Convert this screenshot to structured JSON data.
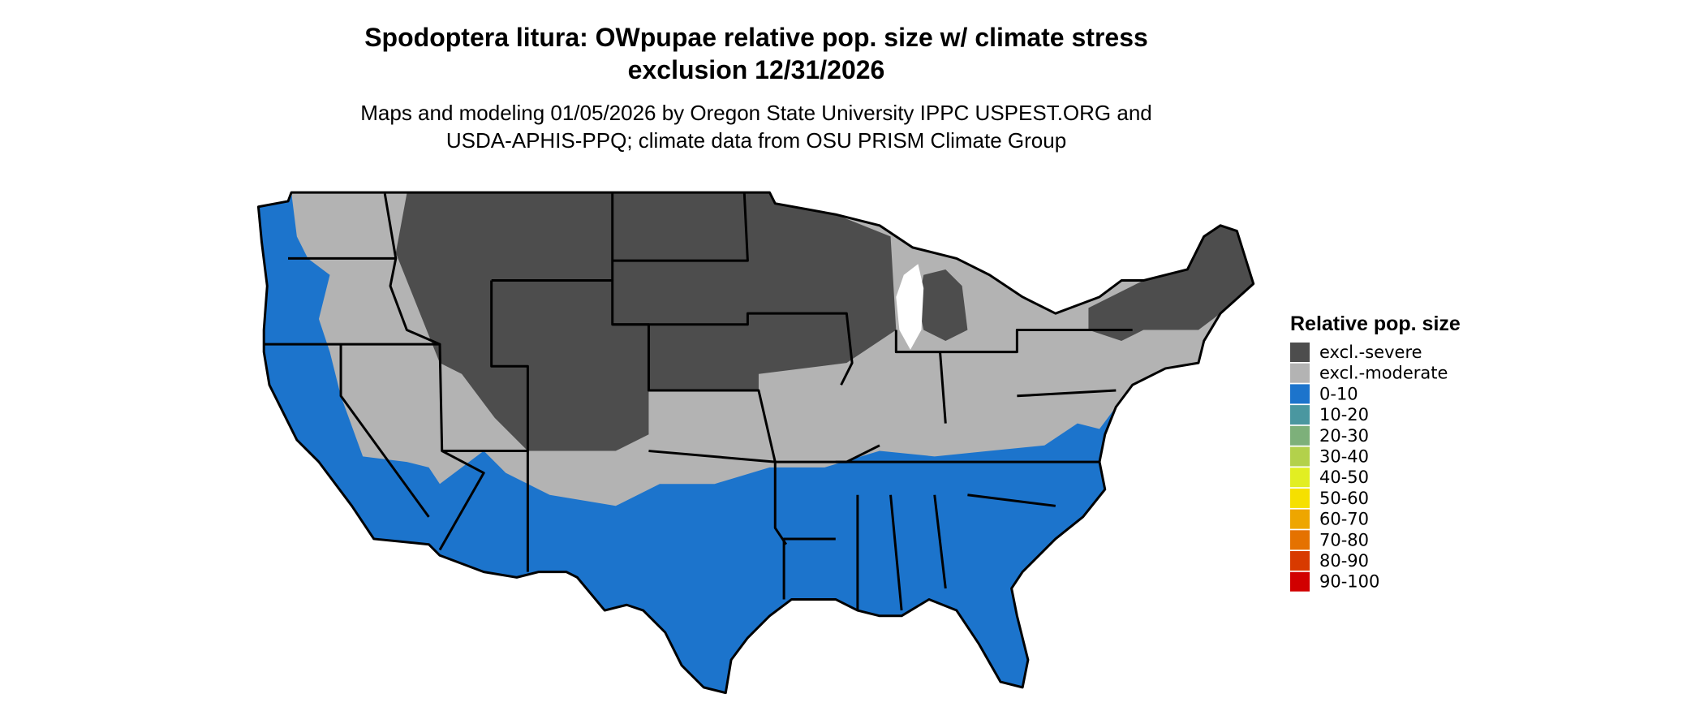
{
  "title": [
    "Spodoptera litura: OWpupae relative pop. size w/ climate stress",
    "exclusion 12/31/2026"
  ],
  "subtitle": [
    "Maps and modeling 01/05/2026 by Oregon State University IPPC USPEST.ORG and",
    "USDA-APHIS-PPQ; climate data from OSU PRISM Climate Group"
  ],
  "legend": {
    "title": "Relative pop. size",
    "items": [
      {
        "label": "excl.-severe",
        "color": "#4d4d4d"
      },
      {
        "label": "excl.-moderate",
        "color": "#b3b3b3"
      },
      {
        "label": "0-10",
        "color": "#1c74cc"
      },
      {
        "label": "10-20",
        "color": "#4a97a0"
      },
      {
        "label": "20-30",
        "color": "#7db07a"
      },
      {
        "label": "30-40",
        "color": "#b3d14b"
      },
      {
        "label": "40-50",
        "color": "#e2ee22"
      },
      {
        "label": "50-60",
        "color": "#f6e000"
      },
      {
        "label": "60-70",
        "color": "#eea600"
      },
      {
        "label": "70-80",
        "color": "#e57200"
      },
      {
        "label": "80-90",
        "color": "#d83a00"
      },
      {
        "label": "90-100",
        "color": "#d10000"
      }
    ]
  }
}
